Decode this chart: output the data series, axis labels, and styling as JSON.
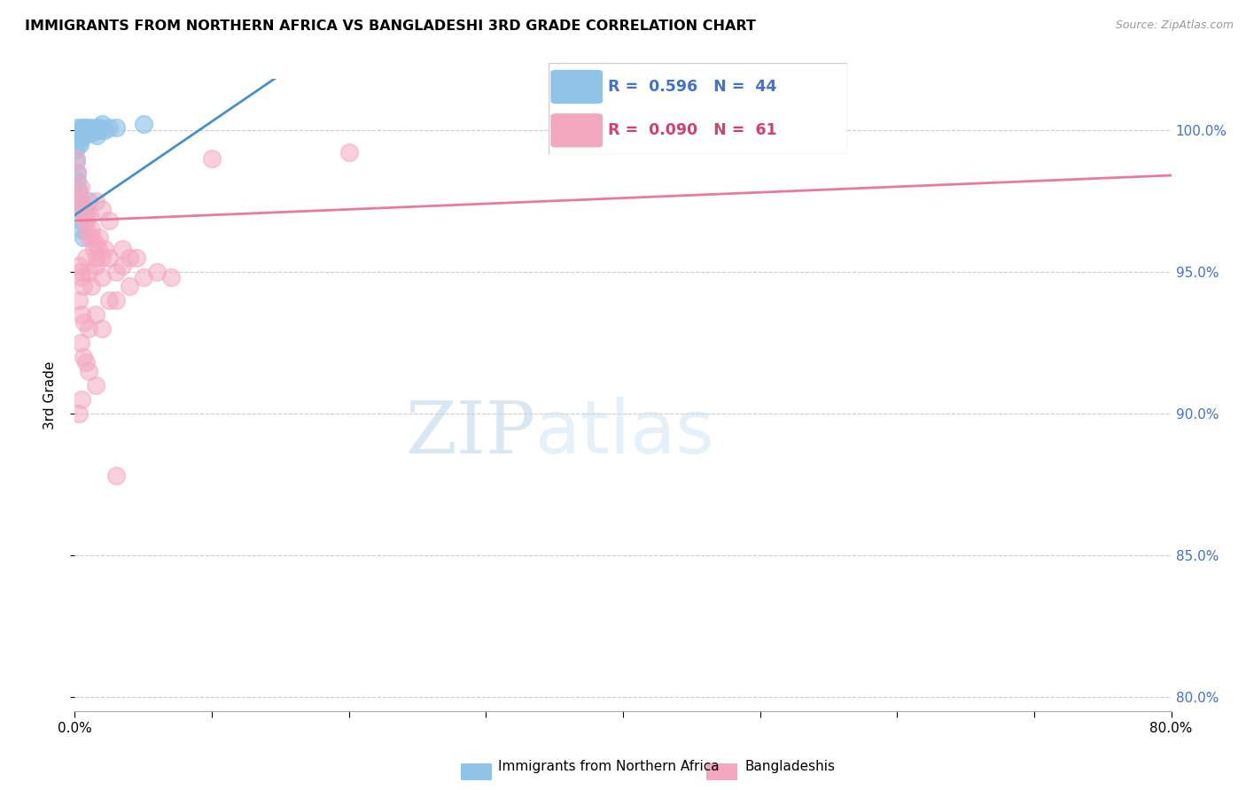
{
  "title": "IMMIGRANTS FROM NORTHERN AFRICA VS BANGLADESHI 3RD GRADE CORRELATION CHART",
  "source": "Source: ZipAtlas.com",
  "ylabel": "3rd Grade",
  "x_tick_labels": [
    "0.0%",
    "",
    "",
    "",
    "",
    "",
    "",
    "",
    "80.0%"
  ],
  "y_tick_labels": [
    "80.0%",
    "85.0%",
    "90.0%",
    "95.0%",
    "100.0%"
  ],
  "xlim": [
    0.0,
    80.0
  ],
  "ylim": [
    79.5,
    101.8
  ],
  "legend_label1": "Immigrants from Northern Africa",
  "legend_label2": "Bangladeshis",
  "r1": 0.596,
  "n1": 44,
  "r2": 0.09,
  "n2": 61,
  "blue_color": "#8fc4e8",
  "pink_color": "#f4a8c0",
  "blue_line_color": "#4a90c4",
  "pink_line_color": "#e87aa0",
  "watermark_zip": "ZIP",
  "watermark_atlas": "atlas",
  "blue_dots": [
    [
      0.1,
      99.9
    ],
    [
      0.15,
      100.1
    ],
    [
      0.2,
      99.7
    ],
    [
      0.25,
      99.8
    ],
    [
      0.3,
      99.6
    ],
    [
      0.35,
      99.5
    ],
    [
      0.4,
      99.8
    ],
    [
      0.45,
      100.0
    ],
    [
      0.5,
      100.1
    ],
    [
      0.55,
      99.9
    ],
    [
      0.6,
      100.0
    ],
    [
      0.65,
      100.1
    ],
    [
      0.7,
      99.8
    ],
    [
      0.75,
      99.9
    ],
    [
      0.8,
      100.0
    ],
    [
      0.85,
      100.1
    ],
    [
      0.9,
      100.0
    ],
    [
      0.95,
      99.9
    ],
    [
      1.0,
      100.0
    ],
    [
      1.1,
      100.1
    ],
    [
      1.2,
      100.0
    ],
    [
      1.3,
      99.9
    ],
    [
      1.4,
      100.0
    ],
    [
      1.5,
      100.1
    ],
    [
      1.6,
      99.8
    ],
    [
      1.7,
      100.0
    ],
    [
      1.8,
      100.1
    ],
    [
      2.0,
      100.2
    ],
    [
      2.2,
      100.0
    ],
    [
      2.5,
      100.1
    ],
    [
      0.05,
      99.3
    ],
    [
      0.1,
      98.9
    ],
    [
      0.15,
      98.5
    ],
    [
      0.2,
      98.2
    ],
    [
      0.25,
      97.9
    ],
    [
      0.3,
      97.5
    ],
    [
      0.35,
      97.2
    ],
    [
      0.4,
      96.8
    ],
    [
      0.5,
      96.5
    ],
    [
      0.6,
      96.2
    ],
    [
      0.8,
      97.0
    ],
    [
      1.0,
      97.5
    ],
    [
      3.0,
      100.1
    ],
    [
      5.0,
      100.2
    ]
  ],
  "pink_dots": [
    [
      0.1,
      99.0
    ],
    [
      0.2,
      98.5
    ],
    [
      0.3,
      97.8
    ],
    [
      0.4,
      98.0
    ],
    [
      0.5,
      97.5
    ],
    [
      0.6,
      97.2
    ],
    [
      0.7,
      97.0
    ],
    [
      0.8,
      96.8
    ],
    [
      0.9,
      96.5
    ],
    [
      1.0,
      96.2
    ],
    [
      1.1,
      97.0
    ],
    [
      1.2,
      96.5
    ],
    [
      1.3,
      96.2
    ],
    [
      1.4,
      95.8
    ],
    [
      1.5,
      96.0
    ],
    [
      1.6,
      95.5
    ],
    [
      1.7,
      95.8
    ],
    [
      1.8,
      96.2
    ],
    [
      2.0,
      95.5
    ],
    [
      2.2,
      95.8
    ],
    [
      0.3,
      95.2
    ],
    [
      0.4,
      95.0
    ],
    [
      0.5,
      94.8
    ],
    [
      0.6,
      94.5
    ],
    [
      0.8,
      95.5
    ],
    [
      1.0,
      95.0
    ],
    [
      1.2,
      94.5
    ],
    [
      1.5,
      95.2
    ],
    [
      2.0,
      94.8
    ],
    [
      2.5,
      95.5
    ],
    [
      0.3,
      94.0
    ],
    [
      0.5,
      93.5
    ],
    [
      0.7,
      93.2
    ],
    [
      1.0,
      93.0
    ],
    [
      1.5,
      93.5
    ],
    [
      0.4,
      92.5
    ],
    [
      0.6,
      92.0
    ],
    [
      0.8,
      91.8
    ],
    [
      1.0,
      91.5
    ],
    [
      1.5,
      91.0
    ],
    [
      2.0,
      93.0
    ],
    [
      2.5,
      94.0
    ],
    [
      3.0,
      95.0
    ],
    [
      3.5,
      95.2
    ],
    [
      4.0,
      94.5
    ],
    [
      3.0,
      94.0
    ],
    [
      4.0,
      95.5
    ],
    [
      5.0,
      94.8
    ],
    [
      0.5,
      90.5
    ],
    [
      0.3,
      90.0
    ],
    [
      1.5,
      97.5
    ],
    [
      2.0,
      97.2
    ],
    [
      2.5,
      96.8
    ],
    [
      3.5,
      95.8
    ],
    [
      4.5,
      95.5
    ],
    [
      6.0,
      95.0
    ],
    [
      7.0,
      94.8
    ],
    [
      10.0,
      99.0
    ],
    [
      20.0,
      99.2
    ],
    [
      3.0,
      87.8
    ],
    [
      0.2,
      97.5
    ]
  ]
}
